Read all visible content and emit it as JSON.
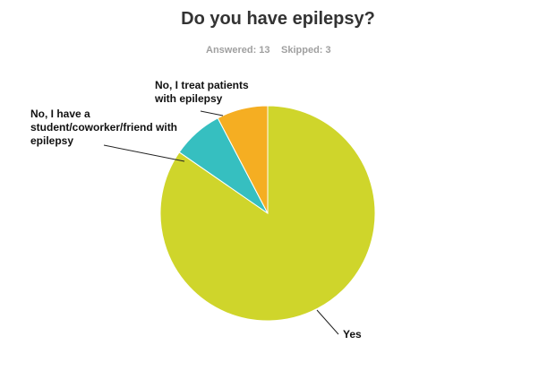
{
  "chart_data": {
    "type": "pie",
    "title": "Do you have epilepsy?",
    "answered": "Answered: 13",
    "skipped": "Skipped: 3",
    "categories": [
      "Yes",
      "No, I have a student/coworker/friend with epilepsy",
      "No, I treat patients with epilepsy"
    ],
    "values": [
      11,
      1,
      1
    ],
    "colors": [
      "#cfd52b",
      "#36bfc0",
      "#f5ae22"
    ]
  }
}
